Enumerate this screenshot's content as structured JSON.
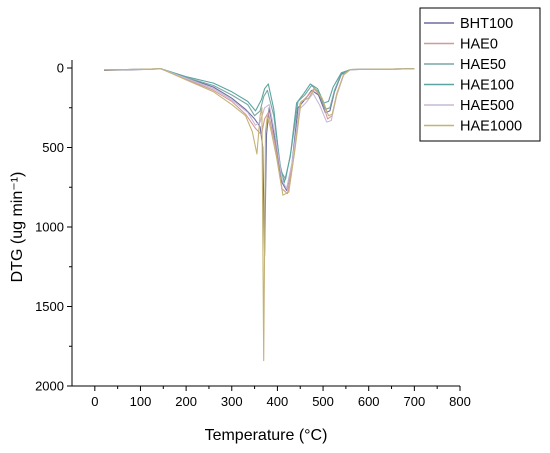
{
  "chart_data": {
    "type": "line",
    "xlabel": "Temperature (°C)",
    "ylabel": "DTG (ug min⁻¹)",
    "xlim": [
      -50,
      800
    ],
    "ylim": [
      0,
      2000
    ],
    "y_inverted": true,
    "grid": false,
    "legend_placement": "top-right",
    "xticks": [
      0,
      100,
      200,
      300,
      400,
      500,
      600,
      700,
      800
    ],
    "yticks": [
      0,
      500,
      1000,
      1500,
      2000
    ],
    "series": [
      {
        "name": "BHT100",
        "color": "#6d6d9e",
        "x": [
          20,
          100,
          145,
          200,
          260,
          300,
          330,
          350,
          362,
          368,
          372,
          376,
          382,
          395,
          410,
          420,
          432,
          445,
          460,
          475,
          490,
          505,
          515,
          525,
          540,
          560,
          600,
          700
        ],
        "y": [
          15,
          10,
          5,
          60,
          120,
          190,
          260,
          320,
          370,
          500,
          1180,
          420,
          250,
          450,
          720,
          770,
          600,
          250,
          200,
          140,
          170,
          280,
          270,
          150,
          40,
          10,
          8,
          5
        ]
      },
      {
        "name": "HAE0",
        "color": "#d4979a",
        "x": [
          20,
          100,
          145,
          200,
          260,
          300,
          330,
          352,
          365,
          372,
          380,
          395,
          410,
          422,
          435,
          450,
          465,
          480,
          495,
          510,
          520,
          530,
          545,
          560,
          600,
          700
        ],
        "y": [
          12,
          8,
          5,
          70,
          140,
          210,
          290,
          380,
          420,
          320,
          280,
          480,
          760,
          790,
          550,
          220,
          180,
          130,
          180,
          320,
          300,
          170,
          40,
          10,
          8,
          5
        ]
      },
      {
        "name": "HAE50",
        "color": "#79a6a6",
        "x": [
          20,
          100,
          145,
          200,
          260,
          300,
          335,
          350,
          362,
          370,
          378,
          392,
          408,
          418,
          430,
          445,
          460,
          475,
          490,
          505,
          515,
          525,
          540,
          560,
          600,
          700
        ],
        "y": [
          12,
          8,
          5,
          60,
          110,
          170,
          230,
          300,
          270,
          180,
          140,
          300,
          650,
          700,
          520,
          210,
          170,
          110,
          150,
          260,
          250,
          140,
          35,
          10,
          8,
          5
        ]
      },
      {
        "name": "HAE100",
        "color": "#5ba5a0",
        "x": [
          20,
          100,
          145,
          200,
          260,
          300,
          335,
          352,
          365,
          372,
          380,
          392,
          405,
          415,
          428,
          442,
          458,
          472,
          488,
          502,
          512,
          522,
          540,
          560,
          600,
          700
        ],
        "y": [
          12,
          8,
          5,
          55,
          95,
          150,
          210,
          270,
          200,
          130,
          100,
          260,
          600,
          720,
          560,
          220,
          160,
          100,
          130,
          220,
          210,
          120,
          30,
          10,
          8,
          5
        ]
      },
      {
        "name": "HAE500",
        "color": "#c9b8d9",
        "x": [
          20,
          100,
          145,
          200,
          260,
          300,
          335,
          352,
          362,
          372,
          382,
          395,
          410,
          420,
          432,
          448,
          462,
          478,
          492,
          508,
          518,
          528,
          545,
          560,
          600,
          700
        ],
        "y": [
          12,
          8,
          5,
          65,
          130,
          200,
          280,
          360,
          340,
          250,
          230,
          420,
          700,
          760,
          600,
          260,
          220,
          160,
          230,
          340,
          330,
          190,
          45,
          10,
          8,
          5
        ]
      },
      {
        "name": "HAE1000",
        "color": "#c4b374",
        "x": [
          20,
          100,
          145,
          200,
          260,
          300,
          330,
          345,
          355,
          362,
          366,
          370,
          374,
          378,
          385,
          398,
          412,
          425,
          438,
          452,
          468,
          482,
          498,
          512,
          520,
          530,
          545,
          560,
          600,
          700
        ],
        "y": [
          12,
          8,
          5,
          75,
          150,
          230,
          300,
          400,
          540,
          300,
          250,
          1840,
          400,
          300,
          380,
          560,
          800,
          780,
          520,
          210,
          190,
          130,
          190,
          300,
          290,
          160,
          40,
          10,
          8,
          5
        ]
      }
    ]
  }
}
